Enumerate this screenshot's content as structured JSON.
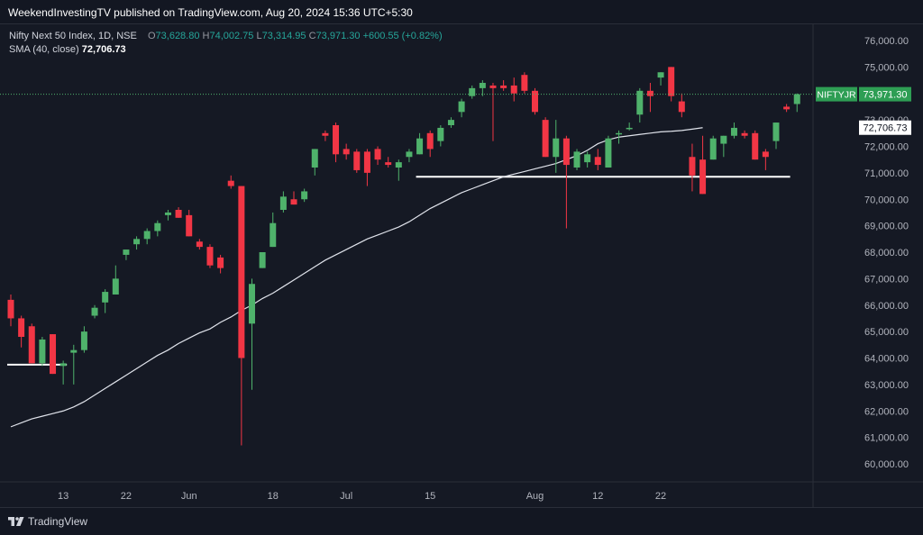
{
  "publish_line": "WeekendInvestingTV published on TradingView.com, Aug 20, 2024 15:36 UTC+5:30",
  "legend": {
    "symbol": "Nifty Next 50 Index, 1D, NSE",
    "o_label": "O",
    "o_value": "73,628.80",
    "h_label": "H",
    "h_value": "74,002.75",
    "l_label": "L",
    "l_value": "73,314.95",
    "c_label": "C",
    "c_value": "73,971.30",
    "change": "+600.55 (+0.82%)",
    "sma_label": "SMA (40, close)",
    "sma_value": "72,706.73"
  },
  "footer": {
    "brand": "TradingView"
  },
  "colors": {
    "up": "#4fb26b",
    "down": "#f23645",
    "sma": "#e0e3eb",
    "support": "#ffffff",
    "last_price_tag": "#2e9e54",
    "background": "#151924"
  },
  "chart_data": {
    "type": "candlestick",
    "symbol": "NIFTYJR",
    "ylim": [
      59500,
      76500
    ],
    "y_ticks": [
      "60,000.00",
      "61,000.00",
      "62,000.00",
      "63,000.00",
      "64,000.00",
      "65,000.00",
      "66,000.00",
      "67,000.00",
      "68,000.00",
      "69,000.00",
      "70,000.00",
      "71,000.00",
      "72,000.00",
      "73,000.00",
      "74,000.00",
      "75,000.00",
      "76,000.00"
    ],
    "x_ticks": [
      {
        "label": "13",
        "index": 5
      },
      {
        "label": "22",
        "index": 11
      },
      {
        "label": "Jun",
        "index": 17
      },
      {
        "label": "18",
        "index": 25
      },
      {
        "label": "Jul",
        "index": 32
      },
      {
        "label": "15",
        "index": 40
      },
      {
        "label": "Aug",
        "index": 50
      },
      {
        "label": "12",
        "index": 56
      },
      {
        "label": "22",
        "index": 62
      }
    ],
    "candles": [
      {
        "o": 66200,
        "h": 66400,
        "l": 65200,
        "c": 65500
      },
      {
        "o": 65500,
        "h": 65600,
        "l": 64400,
        "c": 64800
      },
      {
        "o": 65200,
        "h": 65300,
        "l": 63800,
        "c": 63800
      },
      {
        "o": 63800,
        "h": 64800,
        "l": 63700,
        "c": 64700
      },
      {
        "o": 64900,
        "h": 64900,
        "l": 63400,
        "c": 63400
      },
      {
        "o": 63700,
        "h": 63900,
        "l": 63000,
        "c": 63800
      },
      {
        "o": 64200,
        "h": 64500,
        "l": 63000,
        "c": 64300
      },
      {
        "o": 64300,
        "h": 65200,
        "l": 64200,
        "c": 65000
      },
      {
        "o": 65600,
        "h": 66000,
        "l": 65500,
        "c": 65900
      },
      {
        "o": 66100,
        "h": 66600,
        "l": 65700,
        "c": 66500
      },
      {
        "o": 66400,
        "h": 67500,
        "l": 66400,
        "c": 67000
      },
      {
        "o": 67900,
        "h": 68100,
        "l": 67700,
        "c": 68100
      },
      {
        "o": 68300,
        "h": 68600,
        "l": 68100,
        "c": 68500
      },
      {
        "o": 68500,
        "h": 68900,
        "l": 68300,
        "c": 68800
      },
      {
        "o": 68800,
        "h": 69200,
        "l": 68600,
        "c": 69100
      },
      {
        "o": 69400,
        "h": 69600,
        "l": 69200,
        "c": 69500
      },
      {
        "o": 69600,
        "h": 69700,
        "l": 69300,
        "c": 69300
      },
      {
        "o": 69400,
        "h": 69600,
        "l": 68600,
        "c": 68600
      },
      {
        "o": 68400,
        "h": 68500,
        "l": 68100,
        "c": 68200
      },
      {
        "o": 68200,
        "h": 68300,
        "l": 67400,
        "c": 67500
      },
      {
        "o": 67800,
        "h": 67900,
        "l": 67200,
        "c": 67400
      },
      {
        "o": 70700,
        "h": 70900,
        "l": 70400,
        "c": 70500
      },
      {
        "o": 70500,
        "h": 70500,
        "l": 60700,
        "c": 64000
      },
      {
        "o": 65300,
        "h": 67000,
        "l": 62800,
        "c": 66800
      },
      {
        "o": 67400,
        "h": 68000,
        "l": 67400,
        "c": 68000
      },
      {
        "o": 68200,
        "h": 69500,
        "l": 68200,
        "c": 69100
      },
      {
        "o": 69600,
        "h": 70300,
        "l": 69500,
        "c": 70100
      },
      {
        "o": 70000,
        "h": 70300,
        "l": 69800,
        "c": 69800
      },
      {
        "o": 70000,
        "h": 70400,
        "l": 69900,
        "c": 70300
      },
      {
        "o": 71200,
        "h": 71900,
        "l": 70900,
        "c": 71900
      },
      {
        "o": 72500,
        "h": 72600,
        "l": 72200,
        "c": 72400
      },
      {
        "o": 72800,
        "h": 72900,
        "l": 71400,
        "c": 71700
      },
      {
        "o": 71900,
        "h": 72100,
        "l": 71500,
        "c": 71700
      },
      {
        "o": 71800,
        "h": 71900,
        "l": 71000,
        "c": 71100
      },
      {
        "o": 71800,
        "h": 71900,
        "l": 70500,
        "c": 71000
      },
      {
        "o": 71900,
        "h": 72000,
        "l": 71300,
        "c": 71500
      },
      {
        "o": 71400,
        "h": 71600,
        "l": 71200,
        "c": 71300
      },
      {
        "o": 71200,
        "h": 71500,
        "l": 70700,
        "c": 71400
      },
      {
        "o": 71600,
        "h": 71900,
        "l": 71400,
        "c": 71800
      },
      {
        "o": 71700,
        "h": 72500,
        "l": 71700,
        "c": 72300
      },
      {
        "o": 72500,
        "h": 72600,
        "l": 71600,
        "c": 71900
      },
      {
        "o": 72200,
        "h": 72800,
        "l": 72000,
        "c": 72700
      },
      {
        "o": 72800,
        "h": 73100,
        "l": 72700,
        "c": 73000
      },
      {
        "o": 73300,
        "h": 73800,
        "l": 73100,
        "c": 73700
      },
      {
        "o": 73900,
        "h": 74300,
        "l": 73800,
        "c": 74200
      },
      {
        "o": 74200,
        "h": 74500,
        "l": 73900,
        "c": 74400
      },
      {
        "o": 74300,
        "h": 74400,
        "l": 72200,
        "c": 74200
      },
      {
        "o": 74300,
        "h": 74500,
        "l": 74100,
        "c": 74200
      },
      {
        "o": 74300,
        "h": 74600,
        "l": 73700,
        "c": 74000
      },
      {
        "o": 74700,
        "h": 74800,
        "l": 74000,
        "c": 74100
      },
      {
        "o": 74100,
        "h": 74200,
        "l": 73200,
        "c": 73300
      },
      {
        "o": 73000,
        "h": 73100,
        "l": 71600,
        "c": 71600
      },
      {
        "o": 71600,
        "h": 73000,
        "l": 71000,
        "c": 72300
      },
      {
        "o": 72300,
        "h": 72400,
        "l": 68900,
        "c": 71300
      },
      {
        "o": 71200,
        "h": 71900,
        "l": 71100,
        "c": 71800
      },
      {
        "o": 71400,
        "h": 71800,
        "l": 71200,
        "c": 71700
      },
      {
        "o": 71600,
        "h": 71900,
        "l": 71100,
        "c": 71300
      },
      {
        "o": 71200,
        "h": 72400,
        "l": 71200,
        "c": 72300
      },
      {
        "o": 72500,
        "h": 72600,
        "l": 72100,
        "c": 72500
      },
      {
        "o": 72700,
        "h": 72900,
        "l": 72600,
        "c": 72700
      },
      {
        "o": 73200,
        "h": 74200,
        "l": 72900,
        "c": 74100
      },
      {
        "o": 74100,
        "h": 74400,
        "l": 73300,
        "c": 73900
      },
      {
        "o": 74600,
        "h": 74800,
        "l": 74300,
        "c": 74800
      },
      {
        "o": 75000,
        "h": 75000,
        "l": 73700,
        "c": 73900
      },
      {
        "o": 73700,
        "h": 74000,
        "l": 73100,
        "c": 73300
      },
      {
        "o": 71600,
        "h": 72100,
        "l": 70300,
        "c": 70900
      },
      {
        "o": 71500,
        "h": 72400,
        "l": 70200,
        "c": 70200
      },
      {
        "o": 71500,
        "h": 72400,
        "l": 71500,
        "c": 72300
      },
      {
        "o": 72100,
        "h": 72400,
        "l": 71600,
        "c": 72400
      },
      {
        "o": 72400,
        "h": 72900,
        "l": 72300,
        "c": 72700
      },
      {
        "o": 72500,
        "h": 72600,
        "l": 72300,
        "c": 72400
      },
      {
        "o": 72500,
        "h": 72600,
        "l": 71500,
        "c": 71500
      },
      {
        "o": 71800,
        "h": 71900,
        "l": 71100,
        "c": 71600
      },
      {
        "o": 72200,
        "h": 72900,
        "l": 71900,
        "c": 72900
      },
      {
        "o": 73500,
        "h": 73600,
        "l": 73300,
        "c": 73400
      },
      {
        "o": 73600,
        "h": 74000,
        "l": 73300,
        "c": 73971.3
      }
    ],
    "sma": [
      61400,
      61550,
      61700,
      61800,
      61900,
      62000,
      62150,
      62350,
      62600,
      62850,
      63100,
      63350,
      63600,
      63850,
      64100,
      64300,
      64550,
      64750,
      64950,
      65100,
      65350,
      65550,
      65800,
      66000,
      66250,
      66450,
      66700,
      66950,
      67200,
      67450,
      67700,
      67900,
      68100,
      68300,
      68500,
      68650,
      68800,
      68950,
      69150,
      69400,
      69650,
      69850,
      70050,
      70250,
      70400,
      70550,
      70700,
      70850,
      70950,
      71050,
      71150,
      71250,
      71350,
      71500,
      71650,
      71850,
      72100,
      72250,
      72350,
      72400,
      72450,
      72500,
      72550,
      72570,
      72600,
      72650,
      72706.73
    ],
    "support_lines": [
      {
        "value": 70850,
        "from_index": 39,
        "to_index": 74
      },
      {
        "value": 63750,
        "from_index": 0,
        "to_index": 5
      }
    ],
    "last_price": {
      "label": "NIFTYJR",
      "value": "73,971.30",
      "y": 73971.3
    },
    "sma_tag": {
      "value": "72,706.73",
      "y": 72706.73
    }
  }
}
